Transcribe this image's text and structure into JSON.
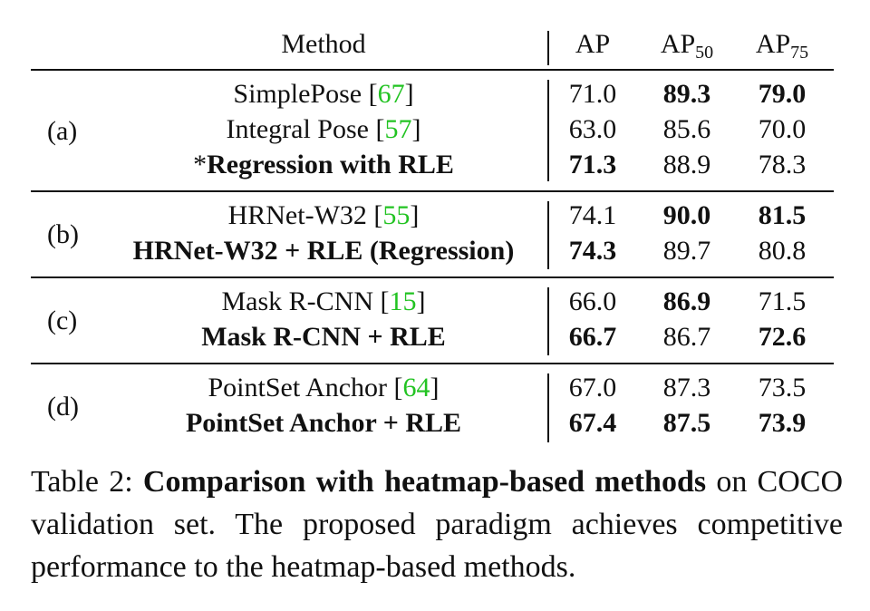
{
  "table": {
    "headers": {
      "method": "Method",
      "ap": "AP",
      "ap50": {
        "base": "AP",
        "sub": "50"
      },
      "ap75": {
        "base": "AP",
        "sub": "75"
      }
    },
    "groups": [
      {
        "label": "(a)",
        "rows": [
          {
            "method": "SimplePose [67]",
            "method_text": "SimplePose [",
            "cite": "67",
            "method_close": "]",
            "bold_method": false,
            "ap": "71.0",
            "ap50": "89.3",
            "ap75": "79.0",
            "bold": [
              false,
              true,
              true
            ]
          },
          {
            "method": "Integral Pose [57]",
            "method_text": "Integral Pose [",
            "cite": "57",
            "method_close": "]",
            "bold_method": false,
            "ap": "63.0",
            "ap50": "85.6",
            "ap75": "70.0",
            "bold": [
              false,
              false,
              false
            ]
          },
          {
            "method": "*Regression with RLE",
            "method_prefix": "*",
            "method_text": "Regression with RLE",
            "bold_method": true,
            "ap": "71.3",
            "ap50": "88.9",
            "ap75": "78.3",
            "bold": [
              true,
              false,
              false
            ]
          }
        ]
      },
      {
        "label": "(b)",
        "rows": [
          {
            "method": "HRNet-W32 [55]",
            "method_text": "HRNet-W32 [",
            "cite": "55",
            "method_close": "]",
            "bold_method": false,
            "ap": "74.1",
            "ap50": "90.0",
            "ap75": "81.5",
            "bold": [
              false,
              true,
              true
            ]
          },
          {
            "method": "HRNet-W32 + RLE (Regression)",
            "method_text": "HRNet-W32 + RLE (Regression)",
            "bold_method": true,
            "ap": "74.3",
            "ap50": "89.7",
            "ap75": "80.8",
            "bold": [
              true,
              false,
              false
            ]
          }
        ]
      },
      {
        "label": "(c)",
        "rows": [
          {
            "method": "Mask R-CNN [15]",
            "method_text": "Mask R-CNN [",
            "cite": "15",
            "method_close": "]",
            "bold_method": false,
            "ap": "66.0",
            "ap50": "86.9",
            "ap75": "71.5",
            "bold": [
              false,
              true,
              false
            ]
          },
          {
            "method": "Mask R-CNN + RLE",
            "method_text": "Mask R-CNN + RLE",
            "bold_method": true,
            "ap": "66.7",
            "ap50": "86.7",
            "ap75": "72.6",
            "bold": [
              true,
              false,
              true
            ]
          }
        ]
      },
      {
        "label": "(d)",
        "rows": [
          {
            "method": "PointSet Anchor [64]",
            "method_text": "PointSet Anchor [",
            "cite": "64",
            "method_close": "]",
            "bold_method": false,
            "ap": "67.0",
            "ap50": "87.3",
            "ap75": "73.5",
            "bold": [
              false,
              false,
              false
            ]
          },
          {
            "method": "PointSet Anchor + RLE",
            "method_text": "PointSet Anchor + RLE",
            "bold_method": true,
            "ap": "67.4",
            "ap50": "87.5",
            "ap75": "73.9",
            "bold": [
              true,
              true,
              true
            ]
          }
        ]
      }
    ]
  },
  "caption": {
    "prefix": "Table 2: ",
    "bold": "Comparison with heatmap-based methods",
    "rest": " on COCO validation set. The proposed paradigm achieves competitive performance to the heatmap-based methods."
  },
  "colors": {
    "text": "#111111",
    "citation": "#22c322",
    "background": "#ffffff"
  }
}
